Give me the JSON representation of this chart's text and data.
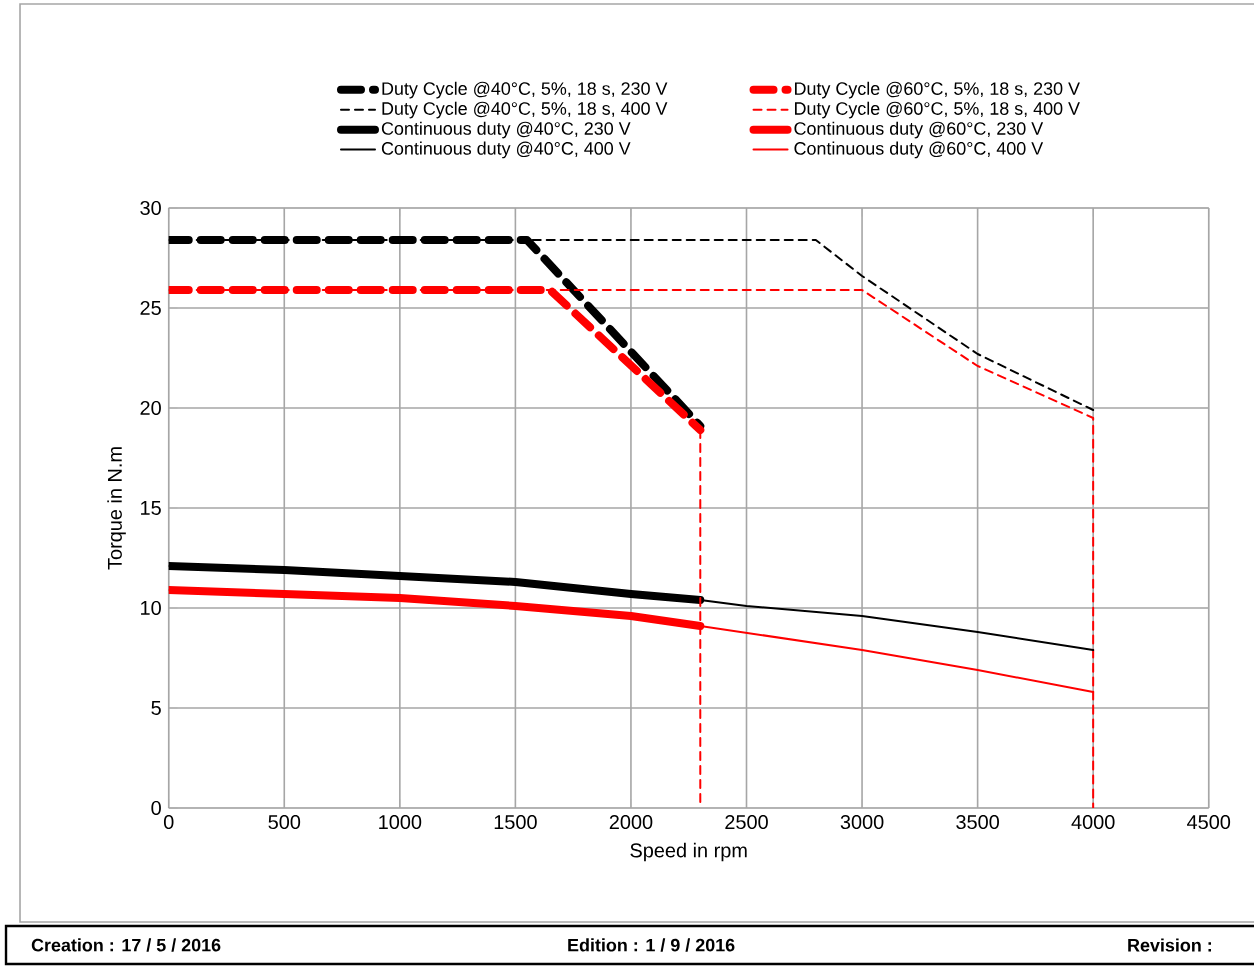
{
  "chart_data": {
    "type": "line",
    "xlabel": "Speed in rpm",
    "ylabel": "Torque in N.m",
    "xlim": [
      0,
      4500
    ],
    "ylim": [
      0,
      30
    ],
    "xticks": [
      0,
      500,
      1000,
      1500,
      2000,
      2500,
      3000,
      3500,
      4000,
      4500
    ],
    "yticks": [
      0,
      5,
      10,
      15,
      20,
      25,
      30
    ],
    "grid": true,
    "legend": "top",
    "marker": "none",
    "series": [
      {
        "name": "Duty Cycle @40°C, 5%, 18 s, 230 V",
        "color": "#000000",
        "line_style": "dashed",
        "x": [
          0,
          1550,
          2300
        ],
        "values": [
          28.4,
          28.4,
          19.1
        ]
      },
      {
        "name": "Duty Cycle @60°C, 5%, 18 s, 230 V",
        "color": "#ff0000",
        "line_style": "dashed",
        "x": [
          0,
          1650,
          2300
        ],
        "values": [
          25.9,
          25.9,
          18.9
        ]
      },
      {
        "name": "Duty Cycle @40°C, 5%, 18 s, 400 V",
        "color": "#000000",
        "line_style": "dashed",
        "x": [
          0,
          2800,
          3000,
          3500,
          4000
        ],
        "values": [
          28.4,
          28.4,
          26.6,
          22.7,
          19.9
        ]
      },
      {
        "name": "Duty Cycle @60°C, 5%, 18 s, 400 V",
        "color": "#ff0000",
        "line_style": "dashed",
        "x": [
          0,
          3000,
          3500,
          4000,
          4000
        ],
        "values": [
          25.9,
          25.9,
          22.1,
          19.5,
          0
        ]
      },
      {
        "name": "Continuous duty @40°C, 230 V",
        "color": "#000000",
        "line_style": "solid",
        "x": [
          0,
          500,
          1000,
          1500,
          2000,
          2300
        ],
        "values": [
          12.1,
          11.9,
          11.6,
          11.3,
          10.7,
          10.4
        ]
      },
      {
        "name": "Continuous duty @60°C, 230 V",
        "color": "#ff0000",
        "line_style": "solid",
        "x": [
          0,
          500,
          1000,
          1500,
          2000,
          2300
        ],
        "values": [
          10.9,
          10.7,
          10.5,
          10.1,
          9.6,
          9.1
        ]
      },
      {
        "name": "Continuous duty @40°C, 400 V",
        "color": "#000000",
        "line_style": "solid",
        "x": [
          0,
          500,
          1000,
          1500,
          2000,
          2300,
          2500,
          3000,
          3500,
          4000
        ],
        "values": [
          12.1,
          11.9,
          11.6,
          11.3,
          10.7,
          10.4,
          10.1,
          9.6,
          8.8,
          7.9
        ]
      },
      {
        "name": "Continuous duty @60°C, 400 V",
        "color": "#ff0000",
        "line_style": "solid",
        "x": [
          0,
          500,
          1000,
          1500,
          2000,
          2300,
          3000,
          3500,
          4000
        ],
        "values": [
          10.9,
          10.7,
          10.5,
          10.1,
          9.6,
          9.1,
          7.9,
          6.9,
          5.8
        ]
      },
      {
        "color": "#ff0000",
        "line_style": "dashed",
        "x": [
          2300,
          2300
        ],
        "values": [
          18.9,
          0
        ]
      }
    ],
    "annotations": [
      "**Creation : 17 / 5 / 2016**",
      "**Edition : 1 / 9 / 2016**",
      "**Revision :**"
    ]
  }
}
